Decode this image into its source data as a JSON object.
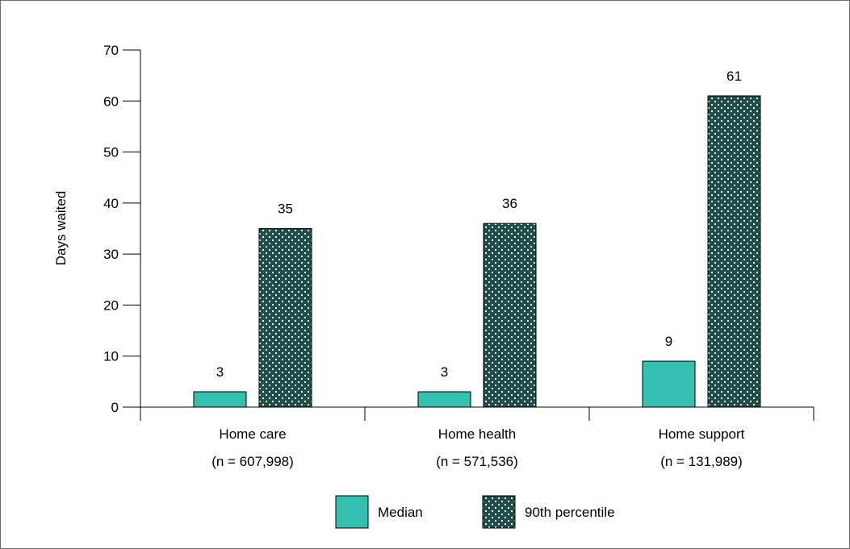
{
  "chart_data": {
    "type": "bar",
    "ylabel": "Days waited",
    "xlabel": "",
    "ylim": [
      0,
      70
    ],
    "yticks": [
      0,
      10,
      20,
      30,
      40,
      50,
      60,
      70
    ],
    "grid": false,
    "legend_position": "bottom",
    "categories": [
      {
        "line1": "Home care",
        "line2": "(n = 607,998)"
      },
      {
        "line1": "Home health",
        "line2": "(n = 571,536)"
      },
      {
        "line1": "Home support",
        "line2": "(n = 131,989)"
      }
    ],
    "series": [
      {
        "name": "Median",
        "values": [
          3,
          3,
          9
        ],
        "color": "#35bfb0",
        "pattern": "solid"
      },
      {
        "name": "90th percentile",
        "values": [
          35,
          36,
          61
        ],
        "color": "#1f4f4a",
        "pattern": "white-dots"
      }
    ]
  }
}
